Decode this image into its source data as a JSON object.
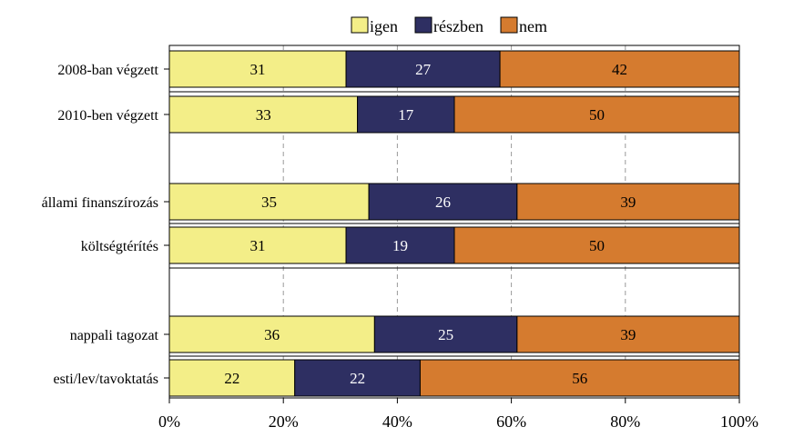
{
  "chart_data": {
    "type": "bar",
    "orientation": "horizontal",
    "stacked": true,
    "normalized_percent": true,
    "legend_position": "top",
    "categories": [
      "2008-ban végzett",
      "2010-ben végzett",
      "",
      "állami finanszírozás",
      "költségtérítés",
      "",
      "nappali tagozat",
      "esti/lev/tavoktatás"
    ],
    "series": [
      {
        "name": "igen",
        "color": "#f3ee88",
        "label_color": "#000000",
        "values": [
          31,
          33,
          null,
          35,
          31,
          null,
          36,
          22
        ]
      },
      {
        "name": "részben",
        "color": "#2e2f62",
        "label_color": "#ffffff",
        "values": [
          27,
          17,
          null,
          26,
          19,
          null,
          25,
          22
        ]
      },
      {
        "name": "nem",
        "color": "#d57b2f",
        "label_color": "#000000",
        "values": [
          42,
          50,
          null,
          39,
          50,
          null,
          39,
          56
        ]
      }
    ],
    "x_ticks": [
      "0%",
      "20%",
      "40%",
      "60%",
      "80%",
      "100%"
    ],
    "xlim": [
      0,
      100
    ],
    "grid": "vertical dashed"
  }
}
